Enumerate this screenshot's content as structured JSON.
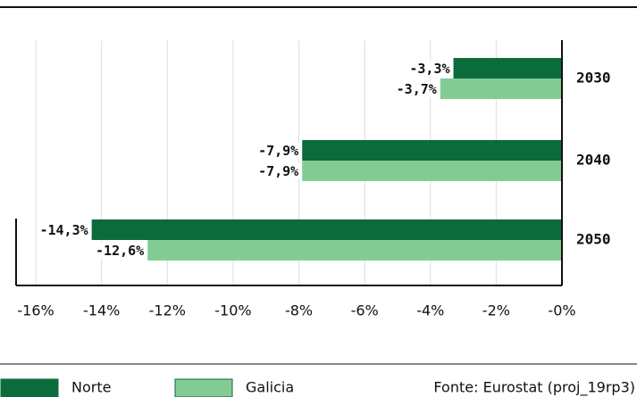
{
  "chart_data": {
    "type": "barh",
    "categories": [
      "2030",
      "2040",
      "2050"
    ],
    "series": [
      {
        "name": "Norte",
        "color": "#0b6b3a",
        "values": [
          -3.3,
          -7.9,
          -14.3
        ],
        "value_labels": [
          "-3,3%",
          "-7,9%",
          "-14,3%"
        ]
      },
      {
        "name": "Galicia",
        "color": "#82cc94",
        "values": [
          -3.7,
          -7.9,
          -12.6
        ],
        "value_labels": [
          "-3,7%",
          "-7,9%",
          "-12,6%"
        ]
      }
    ],
    "xlim": [
      -16.6,
      0
    ],
    "xticks": [
      {
        "value": -16,
        "label": "-16%"
      },
      {
        "value": -14,
        "label": "-14%"
      },
      {
        "value": -12,
        "label": "-12%"
      },
      {
        "value": -10,
        "label": "-10%"
      },
      {
        "value": -8,
        "label": "-8%"
      },
      {
        "value": -6,
        "label": "-6%"
      },
      {
        "value": -4,
        "label": "-4%"
      },
      {
        "value": -2,
        "label": "-2%"
      },
      {
        "value": 0,
        "label": "-0%"
      }
    ],
    "grid": true,
    "source": "Fonte: Eurostat (proj_19rp3)"
  }
}
